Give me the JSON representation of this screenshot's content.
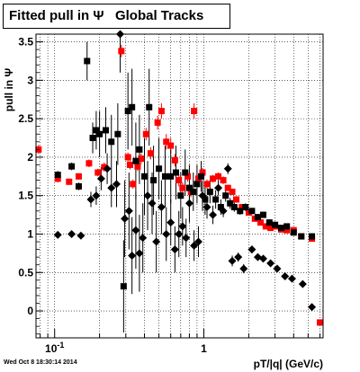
{
  "title": "Fitted pull in Ψ   Global Tracks",
  "timestamp": "Wed Oct  8 18:30:14 2014",
  "chart_data": {
    "type": "scatter",
    "title": "Fitted pull in Ψ   Global Tracks",
    "xlabel": "pT/|q| (GeV/c)",
    "ylabel": "pull in Ψ",
    "xscale": "log",
    "xlim": [
      0.075,
      6.3
    ],
    "ylim": [
      -0.35,
      3.6
    ],
    "grid": true,
    "x_tick_labels": [
      {
        "value": 0.1,
        "label": "10",
        "exp": "-1"
      },
      {
        "value": 1,
        "label": "1"
      }
    ],
    "y_ticks": [
      0,
      0.5,
      1,
      1.5,
      2,
      2.5,
      3,
      3.5
    ],
    "series": [
      {
        "color": "#ff0000",
        "marker": "square",
        "points": [
          [
            0.078,
            2.1,
            0.06
          ],
          [
            0.105,
            1.72,
            0.05
          ],
          [
            0.125,
            1.68,
            0.04
          ],
          [
            0.145,
            1.75,
            0.04
          ],
          [
            0.17,
            1.92,
            0.05
          ],
          [
            0.195,
            1.8,
            0.05
          ],
          [
            0.215,
            1.87,
            0.06
          ],
          [
            0.28,
            3.38,
            0.08
          ],
          [
            0.31,
            2.0,
            0.06
          ],
          [
            0.32,
            1.9,
            0.06
          ],
          [
            0.335,
            1.65,
            0.06
          ],
          [
            0.36,
            1.88,
            0.06
          ],
          [
            0.38,
            1.98,
            0.07
          ],
          [
            0.41,
            2.3,
            0.08
          ],
          [
            0.44,
            2.05,
            0.08
          ],
          [
            0.49,
            2.45,
            0.09
          ],
          [
            0.52,
            2.6,
            0.1
          ],
          [
            0.56,
            2.2,
            0.1
          ],
          [
            0.6,
            2.15,
            0.1
          ],
          [
            0.64,
            1.96,
            0.08
          ],
          [
            0.68,
            1.7,
            0.08
          ],
          [
            0.72,
            1.6,
            0.07
          ],
          [
            0.78,
            1.75,
            0.07
          ],
          [
            0.82,
            1.55,
            0.07
          ],
          [
            0.86,
            2.6,
            0.1
          ],
          [
            0.92,
            1.72,
            0.06
          ],
          [
            0.98,
            1.8,
            0.06
          ],
          [
            1.05,
            1.65,
            0.06
          ],
          [
            1.15,
            1.72,
            0.05
          ],
          [
            1.25,
            1.75,
            0.05
          ],
          [
            1.35,
            1.7,
            0.05
          ],
          [
            1.45,
            1.6,
            0.04
          ],
          [
            1.55,
            1.55,
            0.04
          ],
          [
            1.65,
            1.45,
            0.04
          ],
          [
            1.8,
            1.35,
            0.03
          ],
          [
            2.0,
            1.28,
            0.03
          ],
          [
            2.2,
            1.2,
            0.03
          ],
          [
            2.4,
            1.15,
            0.03
          ],
          [
            2.6,
            1.1,
            0.03
          ],
          [
            2.8,
            1.08,
            0.03
          ],
          [
            3.0,
            1.1,
            0.03
          ],
          [
            3.3,
            1.06,
            0.03
          ],
          [
            3.6,
            1.05,
            0.03
          ],
          [
            4.0,
            1.05,
            0.03
          ],
          [
            4.5,
            0.97,
            0.03
          ],
          [
            5.3,
            0.94,
            0.03
          ],
          [
            6.0,
            -0.15,
            0.03
          ]
        ]
      },
      {
        "color": "#000000",
        "marker": "square",
        "points": [
          [
            0.105,
            1.77,
            0.05
          ],
          [
            0.13,
            1.88,
            0.05
          ],
          [
            0.145,
            1.62,
            0.05
          ],
          [
            0.165,
            3.25,
            0.25
          ],
          [
            0.18,
            2.25,
            0.2
          ],
          [
            0.19,
            2.35,
            0.25
          ],
          [
            0.2,
            2.3,
            0.3
          ],
          [
            0.22,
            2.35,
            0.3
          ],
          [
            0.24,
            2.2,
            0.35
          ],
          [
            0.265,
            2.3,
            0.4
          ],
          [
            0.29,
            0.32,
            0.6
          ],
          [
            0.31,
            2.6,
            0.5
          ],
          [
            0.33,
            2.65,
            0.5
          ],
          [
            0.35,
            1.95,
            0.5
          ],
          [
            0.37,
            2.1,
            0.45
          ],
          [
            0.4,
            1.75,
            0.5
          ],
          [
            0.43,
            2.65,
            0.5
          ],
          [
            0.46,
            1.7,
            0.45
          ],
          [
            0.5,
            1.85,
            0.4
          ],
          [
            0.55,
            1.75,
            0.4
          ],
          [
            0.6,
            1.75,
            0.35
          ],
          [
            0.65,
            1.8,
            0.35
          ],
          [
            0.7,
            1.5,
            0.3
          ],
          [
            0.75,
            1.8,
            0.3
          ],
          [
            0.8,
            1.6,
            0.3
          ],
          [
            0.85,
            1.55,
            0.25
          ],
          [
            0.9,
            1.65,
            0.25
          ],
          [
            0.96,
            1.75,
            0.2
          ],
          [
            1.02,
            1.45,
            0.2
          ],
          [
            1.1,
            1.55,
            0.15
          ],
          [
            1.2,
            1.45,
            0.12
          ],
          [
            1.3,
            1.35,
            0.1
          ],
          [
            1.4,
            1.5,
            0.08
          ],
          [
            1.5,
            1.4,
            0.07
          ],
          [
            1.6,
            1.35,
            0.06
          ],
          [
            1.75,
            1.3,
            0.05
          ],
          [
            1.9,
            1.35,
            0.05
          ],
          [
            2.1,
            1.3,
            0.04
          ],
          [
            2.3,
            1.22,
            0.04
          ],
          [
            2.5,
            1.25,
            0.04
          ],
          [
            2.75,
            1.15,
            0.04
          ],
          [
            3.0,
            1.12,
            0.03
          ],
          [
            3.3,
            1.08,
            0.03
          ],
          [
            3.6,
            1.1,
            0.03
          ],
          [
            4.0,
            1.02,
            0.03
          ],
          [
            4.5,
            0.97,
            0.03
          ],
          [
            5.3,
            0.97,
            0.03
          ]
        ]
      },
      {
        "color": "#000000",
        "marker": "diamond",
        "points": [
          [
            0.105,
            0.99,
            0.04
          ],
          [
            0.13,
            1.0,
            0.04
          ],
          [
            0.15,
            0.98,
            0.04
          ],
          [
            0.175,
            1.45,
            0.1
          ],
          [
            0.19,
            1.5,
            0.12
          ],
          [
            0.205,
            1.72,
            0.15
          ],
          [
            0.225,
            1.85,
            0.2
          ],
          [
            0.24,
            1.6,
            0.25
          ],
          [
            0.26,
            1.65,
            0.3
          ],
          [
            0.275,
            3.6,
            0.5
          ],
          [
            0.295,
            1.2,
            0.5
          ],
          [
            0.315,
            1.3,
            0.5
          ],
          [
            0.33,
            0.72,
            0.5
          ],
          [
            0.35,
            1.05,
            0.5
          ],
          [
            0.37,
            0.75,
            0.5
          ],
          [
            0.39,
            0.95,
            0.45
          ],
          [
            0.42,
            1.5,
            0.45
          ],
          [
            0.45,
            1.4,
            0.4
          ],
          [
            0.48,
            0.9,
            0.4
          ],
          [
            0.52,
            1.35,
            0.35
          ],
          [
            0.56,
            1.0,
            0.35
          ],
          [
            0.6,
            1.15,
            0.3
          ],
          [
            0.64,
            0.8,
            0.3
          ],
          [
            0.68,
            1.0,
            0.3
          ],
          [
            0.72,
            1.1,
            0.25
          ],
          [
            0.76,
            0.95,
            0.25
          ],
          [
            0.8,
            1.4,
            0.25
          ],
          [
            0.86,
            0.85,
            0.2
          ],
          [
            0.92,
            0.9,
            0.2
          ],
          [
            0.98,
            1.5,
            0.2
          ],
          [
            1.05,
            1.35,
            0.15
          ],
          [
            1.15,
            1.25,
            0.12
          ],
          [
            1.25,
            1.6,
            0.1
          ],
          [
            1.35,
            1.3,
            0.08
          ],
          [
            1.45,
            1.85,
            0.07
          ],
          [
            1.55,
            0.65,
            0.07
          ],
          [
            1.7,
            0.7,
            0.06
          ],
          [
            1.85,
            0.55,
            0.06
          ],
          [
            2.1,
            0.8,
            0.05
          ],
          [
            2.3,
            0.7,
            0.04
          ],
          [
            2.5,
            0.68,
            0.04
          ],
          [
            2.8,
            0.62,
            0.04
          ],
          [
            3.1,
            0.55,
            0.03
          ],
          [
            3.5,
            0.45,
            0.03
          ],
          [
            3.9,
            0.42,
            0.03
          ],
          [
            4.6,
            0.35,
            0.03
          ],
          [
            5.3,
            0.05,
            0.03
          ]
        ]
      }
    ]
  }
}
